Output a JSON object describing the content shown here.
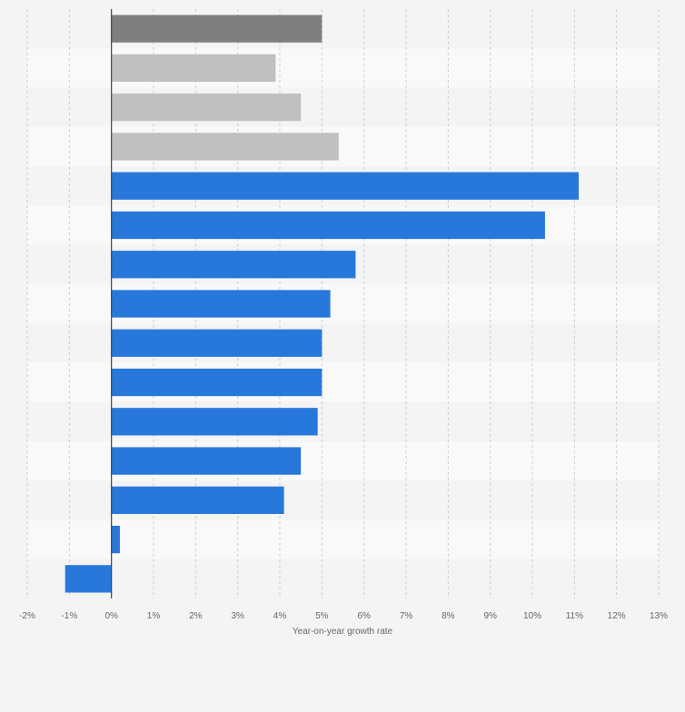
{
  "chart_data": {
    "type": "bar",
    "orientation": "horizontal",
    "xlabel": "Year-on-year growth rate",
    "ylabel": "",
    "xlim": [
      -2,
      13
    ],
    "x_ticks": [
      -2,
      -1,
      0,
      1,
      2,
      3,
      4,
      5,
      6,
      7,
      8,
      9,
      10,
      11,
      12,
      13
    ],
    "tick_suffix": "%",
    "grid": true,
    "legend": "none",
    "colors": {
      "dark_gray": "#7f7f7f",
      "light_gray": "#c0c0c0",
      "blue": "#2878dc",
      "axis": "#444444",
      "grid": "#cccccc",
      "tick_text": "#666666"
    },
    "values": [
      5.0,
      3.9,
      4.5,
      5.4,
      11.1,
      10.3,
      5.8,
      5.2,
      5.0,
      5.0,
      4.9,
      4.5,
      4.1,
      0.2,
      -1.1
    ],
    "bar_colors": [
      "dark_gray",
      "light_gray",
      "light_gray",
      "light_gray",
      "blue",
      "blue",
      "blue",
      "blue",
      "blue",
      "blue",
      "blue",
      "blue",
      "blue",
      "blue",
      "blue"
    ]
  }
}
